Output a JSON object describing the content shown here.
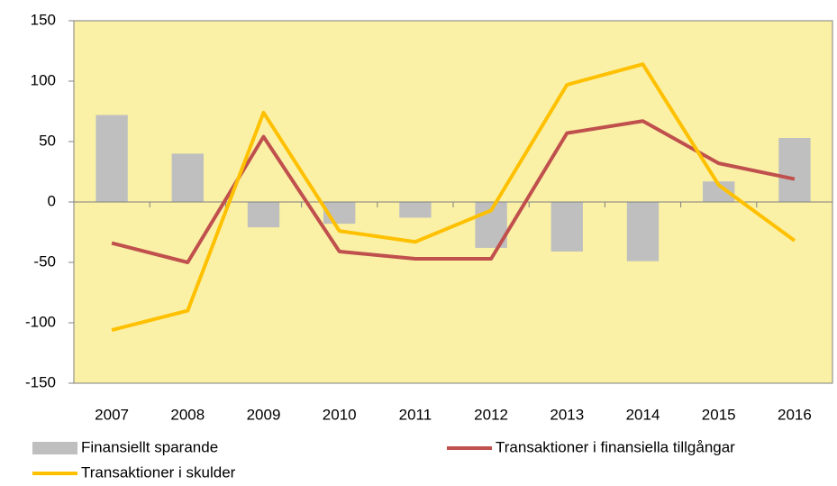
{
  "chart_data": {
    "type": "combo",
    "categories": [
      "2007",
      "2008",
      "2009",
      "2010",
      "2011",
      "2012",
      "2013",
      "2014",
      "2015",
      "2016"
    ],
    "series": [
      {
        "name": "Finansiellt sparande",
        "type": "bar",
        "color": "#bfbfbf",
        "values": [
          72,
          40,
          -21,
          -18,
          -13,
          -38,
          -41,
          -49,
          17,
          53
        ]
      },
      {
        "name": "Transaktioner i finansiella tillgångar",
        "type": "line",
        "color": "#c0504d",
        "values": [
          -34,
          -50,
          54,
          -41,
          -47,
          -47,
          57,
          67,
          32,
          19
        ]
      },
      {
        "name": "Transaktioner i skulder",
        "type": "line",
        "color": "#ffc000",
        "values": [
          -106,
          -90,
          74,
          -24,
          -33,
          -7,
          97,
          114,
          14,
          -32
        ]
      }
    ],
    "ylim": [
      -150,
      150
    ],
    "yticks": [
      -150,
      -100,
      -50,
      0,
      50,
      100,
      150
    ],
    "grid": false,
    "plot_background": "#faf1a6"
  }
}
